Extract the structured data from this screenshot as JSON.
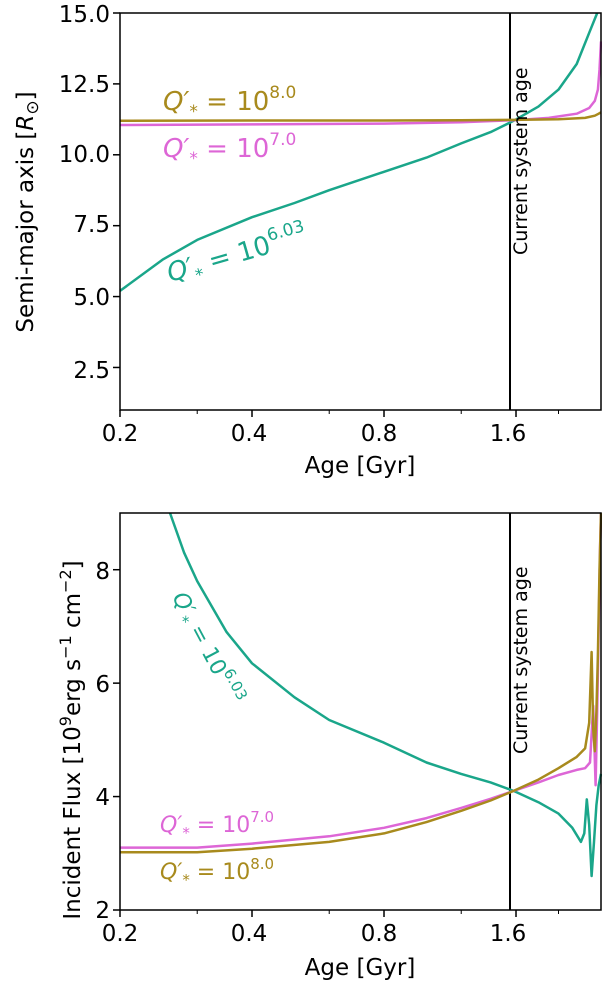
{
  "colors": {
    "q603": "#1aa68a",
    "q70": "#dd66d6",
    "q80": "#a88a1d",
    "axis": "#000000"
  },
  "chart_data": [
    {
      "type": "line",
      "xscale": "log2",
      "xlabel": "Age [Gyr]",
      "ylabel": "Semi-major axis [R⊙]",
      "xlim": [
        0.2,
        2.5
      ],
      "ylim": [
        1.0,
        15.0
      ],
      "xticks": [
        0.2,
        0.4,
        0.8,
        1.6
      ],
      "xticklabels": [
        "0.2",
        "0.4",
        "0.8",
        "1.6"
      ],
      "yticks": [
        2.5,
        5.0,
        7.5,
        10.0,
        12.5,
        15.0
      ],
      "yticklabels": [
        "2.5",
        "5.0",
        "7.5",
        "10.0",
        "12.5",
        "15.0"
      ],
      "vline": {
        "x": 1.58,
        "label": "Current system age"
      },
      "series": [
        {
          "name": "Q'* = 10^6.03",
          "color_key": "q603",
          "x": [
            0.2,
            0.25,
            0.3,
            0.4,
            0.5,
            0.6,
            0.8,
            1.0,
            1.2,
            1.4,
            1.58,
            1.8,
            2.0,
            2.2,
            2.35,
            2.45
          ],
          "y": [
            5.2,
            6.3,
            7.0,
            7.8,
            8.3,
            8.75,
            9.4,
            9.9,
            10.4,
            10.8,
            11.2,
            11.7,
            12.3,
            13.2,
            14.3,
            15.0
          ]
        },
        {
          "name": "Q'* = 10^7.0",
          "color_key": "q70",
          "x": [
            0.2,
            0.4,
            0.8,
            1.2,
            1.58,
            1.9,
            2.2,
            2.35,
            2.42,
            2.46,
            2.48,
            2.5
          ],
          "y": [
            11.05,
            11.07,
            11.1,
            11.15,
            11.22,
            11.3,
            11.45,
            11.65,
            11.9,
            12.3,
            13.0,
            14.0
          ]
        },
        {
          "name": "Q'* = 10^8.0",
          "color_key": "q80",
          "x": [
            0.2,
            0.4,
            0.8,
            1.2,
            1.58,
            2.0,
            2.3,
            2.42,
            2.47,
            2.5
          ],
          "y": [
            11.2,
            11.21,
            11.21,
            11.22,
            11.23,
            11.25,
            11.3,
            11.38,
            11.45,
            11.5
          ]
        }
      ],
      "annotations": [
        {
          "base": "10",
          "exp": "8.0",
          "color_key": "q80"
        },
        {
          "base": "10",
          "exp": "7.0",
          "color_key": "q70"
        },
        {
          "base": "10",
          "exp": "6.03",
          "color_key": "q603"
        }
      ]
    },
    {
      "type": "line",
      "xscale": "log2",
      "xlabel": "Age [Gyr]",
      "ylabel": "Incident Flux [10^9 erg s^-1 cm^-2]",
      "xlim": [
        0.2,
        2.5
      ],
      "ylim": [
        2.0,
        9.0
      ],
      "xticks": [
        0.2,
        0.4,
        0.8,
        1.6
      ],
      "xticklabels": [
        "0.2",
        "0.4",
        "0.8",
        "1.6"
      ],
      "yticks": [
        2,
        4,
        6,
        8
      ],
      "yticklabels": [
        "2",
        "4",
        "6",
        "8"
      ],
      "vline": {
        "x": 1.58,
        "label": "Current system age"
      },
      "series": [
        {
          "name": "Q'* = 10^6.03",
          "color_key": "q603",
          "x": [
            0.26,
            0.28,
            0.3,
            0.35,
            0.4,
            0.5,
            0.6,
            0.8,
            1.0,
            1.2,
            1.4,
            1.58,
            1.8,
            2.0,
            2.15,
            2.25,
            2.29,
            2.32,
            2.35,
            2.38,
            2.41,
            2.44,
            2.47,
            2.5
          ],
          "y": [
            9.0,
            8.3,
            7.8,
            6.9,
            6.35,
            5.75,
            5.35,
            4.95,
            4.6,
            4.4,
            4.25,
            4.1,
            3.9,
            3.7,
            3.45,
            3.2,
            3.35,
            3.95,
            3.5,
            2.6,
            3.2,
            3.85,
            4.2,
            4.4
          ]
        },
        {
          "name": "Q'* = 10^7.0",
          "color_key": "q70",
          "x": [
            0.2,
            0.3,
            0.4,
            0.6,
            0.8,
            1.0,
            1.2,
            1.4,
            1.58,
            1.8,
            2.0,
            2.2,
            2.3,
            2.36,
            2.4,
            2.43,
            2.45,
            2.47,
            2.49,
            2.5
          ],
          "y": [
            3.1,
            3.1,
            3.17,
            3.3,
            3.45,
            3.62,
            3.8,
            3.96,
            4.1,
            4.25,
            4.38,
            4.47,
            4.5,
            4.6,
            5.6,
            4.2,
            5.5,
            7.0,
            8.5,
            9.0
          ]
        },
        {
          "name": "Q'* = 10^8.0",
          "color_key": "q80",
          "x": [
            0.2,
            0.3,
            0.4,
            0.6,
            0.8,
            1.0,
            1.2,
            1.4,
            1.58,
            1.8,
            2.0,
            2.2,
            2.3,
            2.35,
            2.38,
            2.4,
            2.42,
            2.44,
            2.46,
            2.48,
            2.5
          ],
          "y": [
            3.02,
            3.02,
            3.08,
            3.2,
            3.35,
            3.55,
            3.75,
            3.93,
            4.1,
            4.3,
            4.5,
            4.7,
            4.85,
            5.3,
            6.55,
            5.2,
            4.8,
            5.5,
            6.5,
            8.0,
            9.0
          ]
        }
      ],
      "annotations": [
        {
          "base": "10",
          "exp": "6.03",
          "color_key": "q603"
        },
        {
          "base": "10",
          "exp": "7.0",
          "color_key": "q70"
        },
        {
          "base": "10",
          "exp": "8.0",
          "color_key": "q80"
        }
      ]
    }
  ]
}
